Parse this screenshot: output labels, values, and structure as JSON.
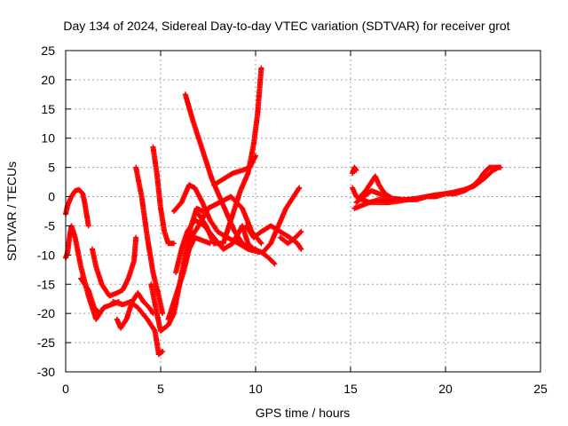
{
  "chart_data": {
    "type": "scatter",
    "title": "Day 134 of 2024, Sidereal Day-to-day VTEC variation (SDTVAR) for receiver grot",
    "xlabel": "GPS time / hours",
    "ylabel": "SDTVAR / TECUs",
    "xlim": [
      0,
      25
    ],
    "ylim": [
      -30,
      25
    ],
    "xticks": [
      "0",
      "5",
      "10",
      "15",
      "20",
      "25"
    ],
    "yticks": [
      "-30",
      "-25",
      "-20",
      "-15",
      "-10",
      "-5",
      "0",
      "5",
      "10",
      "15",
      "20",
      "25"
    ],
    "grid": true,
    "marker_color": "#ff0000",
    "series": [
      {
        "points": [
          [
            0.0,
            -10.5
          ],
          [
            0.1,
            -9.5
          ],
          [
            0.2,
            -7
          ],
          [
            0.3,
            -5
          ],
          [
            0.5,
            -7
          ],
          [
            0.8,
            -12
          ],
          [
            1.2,
            -17
          ],
          [
            1.6,
            -21
          ],
          [
            2.0,
            -19
          ],
          [
            2.4,
            -18.5
          ],
          [
            2.8,
            -18
          ]
        ]
      },
      {
        "points": [
          [
            0.0,
            -3
          ],
          [
            0.1,
            -1.5
          ],
          [
            0.3,
            0
          ],
          [
            0.5,
            1
          ],
          [
            0.7,
            1.2
          ],
          [
            0.9,
            0.5
          ],
          [
            1.0,
            -1
          ],
          [
            1.1,
            -3
          ],
          [
            1.2,
            -5
          ]
        ]
      },
      {
        "points": [
          [
            1.4,
            -9
          ],
          [
            1.6,
            -12
          ],
          [
            1.9,
            -15
          ],
          [
            2.3,
            -17
          ],
          [
            2.7,
            -16.5
          ],
          [
            3.0,
            -16
          ],
          [
            3.3,
            -14
          ],
          [
            3.6,
            -11
          ],
          [
            3.7,
            -7
          ]
        ]
      },
      {
        "points": [
          [
            0.8,
            -14
          ],
          [
            1.2,
            -16
          ],
          [
            1.5,
            -19
          ],
          [
            1.8,
            -20
          ]
        ]
      },
      {
        "points": [
          [
            2.7,
            -21
          ],
          [
            2.9,
            -22.5
          ],
          [
            3.2,
            -21
          ],
          [
            3.5,
            -18
          ],
          [
            3.8,
            -16.5
          ],
          [
            4.1,
            -18
          ],
          [
            4.4,
            -19
          ],
          [
            4.6,
            -20
          ]
        ]
      },
      {
        "points": [
          [
            2.5,
            -18
          ],
          [
            3.0,
            -18.5
          ],
          [
            3.4,
            -18
          ],
          [
            3.8,
            -19
          ],
          [
            4.3,
            -21
          ],
          [
            4.7,
            -23
          ],
          [
            4.9,
            -27
          ],
          [
            5.1,
            -26.5
          ]
        ]
      },
      {
        "points": [
          [
            3.7,
            5
          ],
          [
            4.0,
            0
          ],
          [
            4.3,
            -7
          ],
          [
            4.6,
            -13
          ],
          [
            4.9,
            -17
          ],
          [
            5.1,
            -20
          ]
        ]
      },
      {
        "points": [
          [
            4.6,
            8.5
          ],
          [
            4.8,
            4
          ],
          [
            5.0,
            -2
          ],
          [
            5.2,
            -6
          ],
          [
            5.4,
            -8
          ],
          [
            5.7,
            -8
          ]
        ]
      },
      {
        "points": [
          [
            4.5,
            -15
          ],
          [
            4.8,
            -20
          ],
          [
            5.0,
            -23
          ],
          [
            5.4,
            -22
          ],
          [
            5.7,
            -20
          ],
          [
            6.0,
            -15
          ],
          [
            6.3,
            -10
          ],
          [
            6.6,
            -5
          ],
          [
            6.9,
            -2
          ],
          [
            7.2,
            -2.5
          ]
        ]
      },
      {
        "points": [
          [
            5.4,
            -21
          ],
          [
            5.8,
            -17
          ],
          [
            6.2,
            -13
          ],
          [
            6.5,
            -9
          ],
          [
            6.8,
            -7
          ],
          [
            7.2,
            -7.5
          ],
          [
            7.6,
            -8
          ]
        ]
      },
      {
        "points": [
          [
            5.8,
            -13
          ],
          [
            6.1,
            -9
          ],
          [
            6.4,
            -6
          ],
          [
            6.8,
            -4
          ],
          [
            7.3,
            -5
          ],
          [
            7.8,
            -7
          ],
          [
            8.3,
            -9
          ],
          [
            8.8,
            -8
          ],
          [
            9.3,
            -5
          ]
        ]
      },
      {
        "points": [
          [
            6.3,
            -11
          ],
          [
            6.6,
            -7
          ],
          [
            7.0,
            -5
          ],
          [
            7.5,
            -2
          ],
          [
            8.1,
            -1
          ],
          [
            8.7,
            0
          ],
          [
            9.3,
            -2
          ],
          [
            9.8,
            -6
          ],
          [
            10.3,
            -8
          ]
        ]
      },
      {
        "points": [
          [
            5.7,
            -2.5
          ],
          [
            6.1,
            -1
          ],
          [
            6.5,
            2
          ],
          [
            6.8,
            1.5
          ],
          [
            7.2,
            -1
          ],
          [
            7.6,
            -4
          ],
          [
            8.0,
            -6
          ],
          [
            8.5,
            -7
          ],
          [
            9.1,
            -8
          ],
          [
            9.6,
            -9
          ],
          [
            10.2,
            -9.5
          ]
        ]
      },
      {
        "points": [
          [
            6.3,
            17.5
          ],
          [
            6.7,
            13
          ],
          [
            7.2,
            8
          ],
          [
            7.7,
            3
          ],
          [
            8.1,
            0
          ],
          [
            8.5,
            -3
          ],
          [
            8.9,
            -6
          ],
          [
            9.3,
            -8
          ],
          [
            9.7,
            -9
          ],
          [
            10.0,
            -9
          ]
        ]
      },
      {
        "points": [
          [
            7.0,
            -3
          ],
          [
            7.4,
            -5
          ],
          [
            7.8,
            -8
          ],
          [
            8.3,
            -8
          ],
          [
            8.8,
            -3
          ],
          [
            9.2,
            1
          ],
          [
            9.6,
            4
          ],
          [
            9.9,
            9
          ],
          [
            10.1,
            14
          ],
          [
            10.3,
            22
          ]
        ]
      },
      {
        "points": [
          [
            7.8,
            2
          ],
          [
            8.3,
            3
          ],
          [
            8.8,
            4
          ],
          [
            9.3,
            4.5
          ],
          [
            9.7,
            5
          ],
          [
            10.0,
            7
          ]
        ]
      },
      {
        "points": [
          [
            9.3,
            -5
          ],
          [
            9.6,
            -8
          ],
          [
            9.9,
            -9
          ],
          [
            10.3,
            -9.5
          ],
          [
            10.7,
            -10.5
          ],
          [
            11.0,
            -11.5
          ]
        ]
      },
      {
        "points": [
          [
            9.5,
            -5
          ],
          [
            9.9,
            -7
          ],
          [
            10.3,
            -6
          ],
          [
            10.8,
            -5
          ],
          [
            11.3,
            -6
          ],
          [
            11.8,
            -7
          ],
          [
            12.2,
            -8
          ],
          [
            12.4,
            -9
          ]
        ]
      },
      {
        "points": [
          [
            10.4,
            -9.5
          ],
          [
            10.8,
            -8
          ],
          [
            11.2,
            -5
          ],
          [
            11.6,
            -2
          ],
          [
            12.0,
            0
          ],
          [
            12.3,
            1.5
          ]
        ]
      },
      {
        "points": [
          [
            11.3,
            -7
          ],
          [
            11.7,
            -8
          ],
          [
            12.1,
            -7
          ],
          [
            12.4,
            -6
          ]
        ]
      },
      {
        "points": [
          [
            15.1,
            4
          ],
          [
            15.2,
            5
          ],
          [
            15.3,
            4.5
          ]
        ]
      },
      {
        "points": [
          [
            15.1,
            1.5
          ],
          [
            15.3,
            0
          ],
          [
            15.6,
            -0.5
          ],
          [
            16.0,
            -1
          ],
          [
            16.5,
            -0.5
          ],
          [
            17.0,
            -0.5
          ],
          [
            17.5,
            -0.5
          ],
          [
            18.0,
            -0.5
          ],
          [
            18.5,
            -0.5
          ],
          [
            19.0,
            0
          ],
          [
            19.5,
            0
          ],
          [
            20.0,
            0.5
          ],
          [
            20.5,
            0.5
          ],
          [
            21.0,
            1
          ],
          [
            21.5,
            2
          ],
          [
            21.8,
            3
          ],
          [
            22.0,
            4
          ],
          [
            22.3,
            5
          ],
          [
            22.7,
            5
          ],
          [
            22.9,
            5
          ]
        ]
      },
      {
        "points": [
          [
            15.2,
            -2
          ],
          [
            15.6,
            -1.5
          ],
          [
            16.0,
            -1
          ],
          [
            16.5,
            -1
          ],
          [
            17.0,
            -1
          ],
          [
            17.5,
            -0.8
          ],
          [
            18.0,
            -0.5
          ],
          [
            18.5,
            -0.3
          ],
          [
            19.0,
            0
          ],
          [
            19.5,
            0.3
          ],
          [
            20.0,
            0.5
          ],
          [
            20.5,
            0.8
          ],
          [
            21.0,
            1.2
          ],
          [
            21.5,
            1.8
          ],
          [
            22.0,
            3
          ],
          [
            22.5,
            4.5
          ],
          [
            22.8,
            5
          ]
        ]
      },
      {
        "points": [
          [
            15.5,
            0
          ],
          [
            15.8,
            1
          ],
          [
            16.1,
            2.5
          ],
          [
            16.3,
            3.5
          ],
          [
            16.5,
            2
          ],
          [
            16.8,
            0.5
          ],
          [
            17.2,
            -0.3
          ],
          [
            17.7,
            -0.5
          ]
        ]
      },
      {
        "points": [
          [
            15.3,
            -1
          ],
          [
            15.7,
            0
          ],
          [
            16.1,
            1
          ],
          [
            16.5,
            0.5
          ],
          [
            17.0,
            0
          ]
        ]
      }
    ]
  }
}
